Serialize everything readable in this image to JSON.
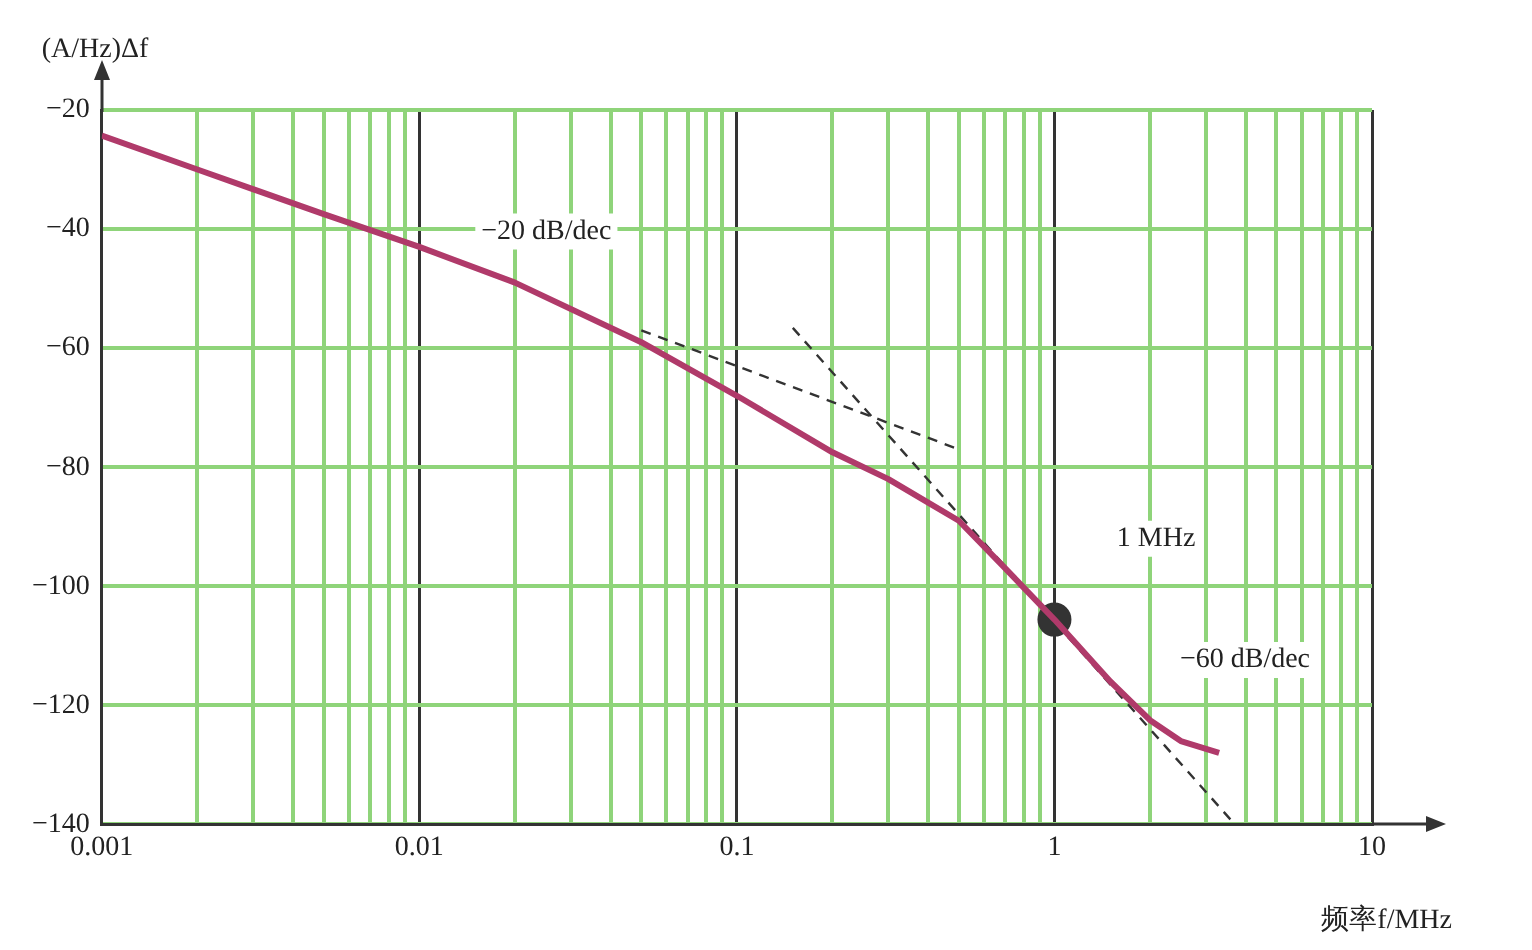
{
  "chart_data": {
    "type": "line",
    "ylabel": "(A/Hz)Δf",
    "xlabel": "频率f/MHz",
    "log": "x",
    "grid": true,
    "legend": false,
    "marker": "none",
    "xlim": [
      0.001,
      10
    ],
    "ylim": [
      -140,
      -20
    ],
    "xticks": [
      0.001,
      {
        "value": 0.002,
        "label": null
      },
      {
        "value": 0.003,
        "label": null
      },
      {
        "value": 0.004,
        "label": null
      },
      {
        "value": 0.005,
        "label": null
      },
      {
        "value": 0.006,
        "label": null
      },
      {
        "value": 0.007,
        "label": null
      },
      {
        "value": 0.008,
        "label": null
      },
      {
        "value": 0.009,
        "label": null
      },
      0.01,
      {
        "value": 0.02,
        "label": null
      },
      {
        "value": 0.03,
        "label": null
      },
      {
        "value": 0.04,
        "label": null
      },
      {
        "value": 0.05,
        "label": null
      },
      {
        "value": 0.06,
        "label": null
      },
      {
        "value": 0.07,
        "label": null
      },
      {
        "value": 0.08,
        "label": null
      },
      {
        "value": 0.09,
        "label": null
      },
      0.1,
      {
        "value": 0.2,
        "label": null
      },
      {
        "value": 0.3,
        "label": null
      },
      {
        "value": 0.4,
        "label": null
      },
      {
        "value": 0.5,
        "label": null
      },
      {
        "value": 0.6,
        "label": null
      },
      {
        "value": 0.7,
        "label": null
      },
      {
        "value": 0.8,
        "label": null
      },
      {
        "value": 0.9,
        "label": null
      },
      1,
      {
        "value": 2,
        "label": null
      },
      {
        "value": 3,
        "label": null
      },
      {
        "value": 4,
        "label": null
      },
      {
        "value": 5,
        "label": null
      },
      {
        "value": 6,
        "label": null
      },
      {
        "value": 7,
        "label": null
      },
      {
        "value": 8,
        "label": null
      },
      {
        "value": 9,
        "label": null
      },
      10
    ],
    "yticks": [
      -140,
      -120,
      -100,
      -80,
      -60,
      -40,
      -20
    ],
    "series": [
      {
        "color": "#b03a6a",
        "x": [
          0.001,
          0.002,
          0.005,
          0.01,
          0.02,
          0.05,
          0.1,
          0.2,
          0.3,
          0.5,
          0.7,
          1,
          1.5,
          2,
          2.5,
          3.3
        ],
        "values": [
          -24.3,
          -30,
          -37.5,
          -43,
          -49,
          -59,
          -68,
          -77.5,
          -82,
          -89,
          -97,
          -105.6,
          -116,
          -122.5,
          -126,
          -128
        ]
      },
      {
        "type": "line",
        "line_style": "dashed",
        "color": "#333333",
        "x": [
          0.05,
          0.5
        ],
        "values": [
          -57,
          -77
        ]
      },
      {
        "type": "line",
        "line_style": "dashed",
        "color": "#333333",
        "x": [
          0.15,
          3.7
        ],
        "values": [
          -56.6,
          -140
        ]
      },
      {
        "type": "scatter",
        "marker": "circle",
        "color": "#333333",
        "x": [
          1
        ],
        "values": [
          -105.6
        ]
      }
    ],
    "annotations": [
      "−20 dB/dec",
      "1 MHz",
      "−60 dB/dec"
    ]
  }
}
